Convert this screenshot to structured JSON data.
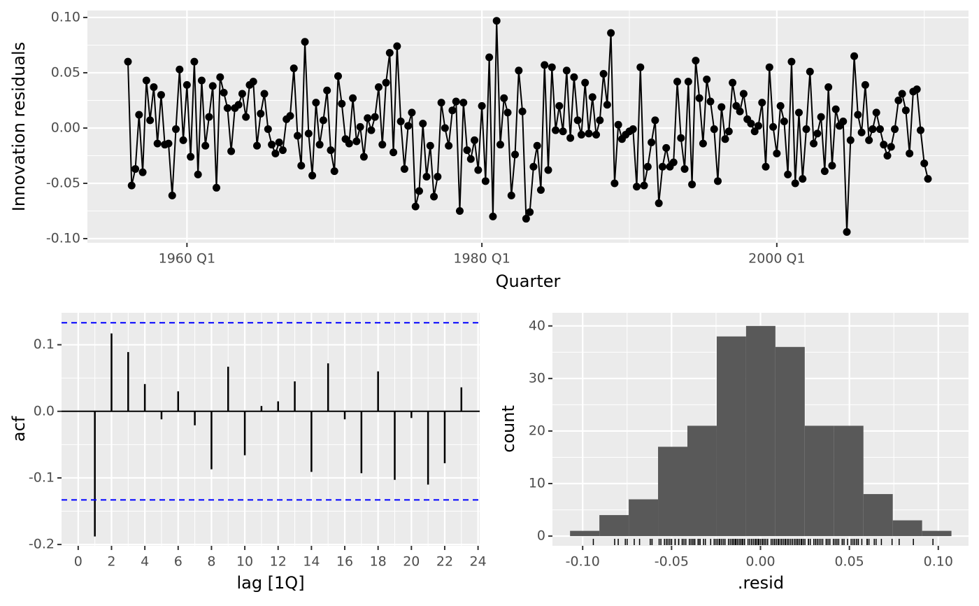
{
  "chart_data": [
    {
      "type": "line",
      "ylabel": "Innovation residuals",
      "xlabel": "Quarter",
      "color": "#000000",
      "grid": true,
      "x": [
        "1956 Q1",
        "1956 Q2",
        "1956 Q3",
        "1956 Q4",
        "1957 Q1",
        "1957 Q2",
        "1957 Q3",
        "1957 Q4",
        "1958 Q1",
        "1958 Q2",
        "1958 Q3",
        "1958 Q4",
        "1959 Q1",
        "1959 Q2",
        "1959 Q3",
        "1959 Q4",
        "1960 Q1",
        "1960 Q2",
        "1960 Q3",
        "1960 Q4",
        "1961 Q1",
        "1961 Q2",
        "1961 Q3",
        "1961 Q4",
        "1962 Q1",
        "1962 Q2",
        "1962 Q3",
        "1962 Q4",
        "1963 Q1",
        "1963 Q2",
        "1963 Q3",
        "1963 Q4",
        "1964 Q1",
        "1964 Q2",
        "1964 Q3",
        "1964 Q4",
        "1965 Q1",
        "1965 Q2",
        "1965 Q3",
        "1965 Q4",
        "1966 Q1",
        "1966 Q2",
        "1966 Q3",
        "1966 Q4",
        "1967 Q1",
        "1967 Q2",
        "1967 Q3",
        "1967 Q4",
        "1968 Q1",
        "1968 Q2",
        "1968 Q3",
        "1968 Q4",
        "1969 Q1",
        "1969 Q2",
        "1969 Q3",
        "1969 Q4",
        "1970 Q1",
        "1970 Q2",
        "1970 Q3",
        "1970 Q4",
        "1971 Q1",
        "1971 Q2",
        "1971 Q3",
        "1971 Q4",
        "1972 Q1",
        "1972 Q2",
        "1972 Q3",
        "1972 Q4",
        "1973 Q1",
        "1973 Q2",
        "1973 Q3",
        "1973 Q4",
        "1974 Q1",
        "1974 Q2",
        "1974 Q3",
        "1974 Q4",
        "1975 Q1",
        "1975 Q2",
        "1975 Q3",
        "1975 Q4",
        "1976 Q1",
        "1976 Q2",
        "1976 Q3",
        "1976 Q4",
        "1977 Q1",
        "1977 Q2",
        "1977 Q3",
        "1977 Q4",
        "1978 Q1",
        "1978 Q2",
        "1978 Q3",
        "1978 Q4",
        "1979 Q1",
        "1979 Q2",
        "1979 Q3",
        "1979 Q4",
        "1980 Q1",
        "1980 Q2",
        "1980 Q3",
        "1980 Q4",
        "1981 Q1",
        "1981 Q2",
        "1981 Q3",
        "1981 Q4",
        "1982 Q1",
        "1982 Q2",
        "1982 Q3",
        "1982 Q4",
        "1983 Q1",
        "1983 Q2",
        "1983 Q3",
        "1983 Q4",
        "1984 Q1",
        "1984 Q2",
        "1984 Q3",
        "1984 Q4",
        "1985 Q1",
        "1985 Q2",
        "1985 Q3",
        "1985 Q4",
        "1986 Q1",
        "1986 Q2",
        "1986 Q3",
        "1986 Q4",
        "1987 Q1",
        "1987 Q2",
        "1987 Q3",
        "1987 Q4",
        "1988 Q1",
        "1988 Q2",
        "1988 Q3",
        "1988 Q4",
        "1989 Q1",
        "1989 Q2",
        "1989 Q3",
        "1989 Q4",
        "1990 Q1",
        "1990 Q2",
        "1990 Q3",
        "1990 Q4",
        "1991 Q1",
        "1991 Q2",
        "1991 Q3",
        "1991 Q4",
        "1992 Q1",
        "1992 Q2",
        "1992 Q3",
        "1992 Q4",
        "1993 Q1",
        "1993 Q2",
        "1993 Q3",
        "1993 Q4",
        "1994 Q1",
        "1994 Q2",
        "1994 Q3",
        "1994 Q4",
        "1995 Q1",
        "1995 Q2",
        "1995 Q3",
        "1995 Q4",
        "1996 Q1",
        "1996 Q2",
        "1996 Q3",
        "1996 Q4",
        "1997 Q1",
        "1997 Q2",
        "1997 Q3",
        "1997 Q4",
        "1998 Q1",
        "1998 Q2",
        "1998 Q3",
        "1998 Q4",
        "1999 Q1",
        "1999 Q2",
        "1999 Q3",
        "1999 Q4",
        "2000 Q1",
        "2000 Q2",
        "2000 Q3",
        "2000 Q4",
        "2001 Q1",
        "2001 Q2",
        "2001 Q3",
        "2001 Q4",
        "2002 Q1",
        "2002 Q2",
        "2002 Q3",
        "2002 Q4",
        "2003 Q1",
        "2003 Q2",
        "2003 Q3",
        "2003 Q4",
        "2004 Q1",
        "2004 Q2",
        "2004 Q3",
        "2004 Q4",
        "2005 Q1",
        "2005 Q2",
        "2005 Q3",
        "2005 Q4",
        "2006 Q1",
        "2006 Q2",
        "2006 Q3",
        "2006 Q4",
        "2007 Q1",
        "2007 Q2",
        "2007 Q3",
        "2007 Q4",
        "2008 Q1",
        "2008 Q2",
        "2008 Q3",
        "2008 Q4",
        "2009 Q1",
        "2009 Q2",
        "2009 Q3",
        "2009 Q4",
        "2010 Q1",
        "2010 Q2"
      ],
      "values": [
        0.06,
        -0.052,
        -0.037,
        0.012,
        -0.04,
        0.043,
        0.007,
        0.037,
        -0.014,
        0.03,
        -0.015,
        -0.014,
        -0.061,
        -0.001,
        0.053,
        -0.011,
        0.039,
        -0.026,
        0.06,
        -0.042,
        0.043,
        -0.016,
        0.01,
        0.038,
        -0.054,
        0.046,
        0.032,
        0.018,
        -0.021,
        0.018,
        0.021,
        0.031,
        0.01,
        0.039,
        0.042,
        -0.016,
        0.013,
        0.031,
        -0.001,
        -0.015,
        -0.023,
        -0.013,
        -0.02,
        0.008,
        0.011,
        0.054,
        -0.007,
        -0.034,
        0.078,
        -0.005,
        -0.043,
        0.023,
        -0.015,
        0.007,
        0.034,
        -0.02,
        -0.039,
        0.047,
        0.022,
        -0.01,
        -0.014,
        0.027,
        -0.012,
        0.001,
        -0.026,
        0.009,
        -0.002,
        0.01,
        0.037,
        -0.015,
        0.041,
        0.068,
        -0.022,
        0.074,
        0.006,
        -0.037,
        0.002,
        0.014,
        -0.071,
        -0.057,
        0.004,
        -0.044,
        -0.016,
        -0.062,
        -0.044,
        0.023,
        0.0,
        -0.016,
        0.016,
        0.024,
        -0.075,
        0.023,
        -0.02,
        -0.028,
        -0.011,
        -0.038,
        0.02,
        -0.048,
        0.064,
        -0.08,
        0.097,
        -0.015,
        0.027,
        0.014,
        -0.061,
        -0.024,
        0.052,
        0.015,
        -0.082,
        -0.076,
        -0.035,
        -0.016,
        -0.056,
        0.057,
        -0.038,
        0.055,
        -0.002,
        0.02,
        -0.003,
        0.052,
        -0.009,
        0.046,
        0.007,
        -0.006,
        0.041,
        -0.005,
        0.028,
        -0.006,
        0.007,
        0.049,
        0.021,
        0.086,
        -0.05,
        0.003,
        -0.01,
        -0.006,
        -0.003,
        -0.001,
        -0.053,
        0.055,
        -0.052,
        -0.035,
        -0.013,
        0.007,
        -0.068,
        -0.035,
        -0.018,
        -0.035,
        -0.031,
        0.042,
        -0.009,
        -0.037,
        0.042,
        -0.051,
        0.061,
        0.027,
        -0.014,
        0.044,
        0.024,
        -0.001,
        -0.048,
        0.019,
        -0.01,
        -0.003,
        0.041,
        0.02,
        0.015,
        0.031,
        0.008,
        0.004,
        -0.003,
        0.002,
        0.023,
        -0.035,
        0.055,
        0.001,
        -0.023,
        0.02,
        0.006,
        -0.042,
        0.06,
        -0.05,
        0.014,
        -0.046,
        -0.001,
        0.051,
        -0.014,
        -0.005,
        0.01,
        -0.039,
        0.037,
        -0.034,
        0.017,
        0.002,
        0.006,
        -0.094,
        -0.011,
        0.065,
        0.012,
        -0.004,
        0.039,
        -0.011,
        -0.001,
        0.014,
        -0.001,
        -0.015,
        -0.025,
        -0.017,
        -0.001,
        0.025,
        0.031,
        0.016,
        -0.023,
        0.033,
        0.035,
        -0.002,
        -0.032,
        -0.046
      ],
      "ylim": [
        -0.1038,
        0.1063
      ],
      "yticks": [
        {
          "value": -0.1,
          "label": "-0.10"
        },
        -0.05,
        {
          "value": 0,
          "label": "0.00"
        },
        0.05,
        {
          "value": 0.1,
          "label": "0.10"
        }
      ],
      "xlim": [
        "1953 Q2",
        "2013 Q1"
      ],
      "xticks": [
        "1960 Q1",
        "1980 Q1",
        "2000 Q1"
      ]
    },
    {
      "type": "acf",
      "xlabel": "lag [1Q]",
      "ylabel": "acf",
      "color": "#000000",
      "grid": true,
      "x": [
        1,
        2,
        3,
        4,
        5,
        6,
        7,
        8,
        9,
        10,
        11,
        12,
        13,
        14,
        15,
        16,
        17,
        18,
        19,
        20,
        21,
        22,
        23
      ],
      "values": [
        -0.188,
        0.117,
        0.089,
        0.041,
        -0.012,
        0.03,
        -0.021,
        -0.087,
        0.067,
        -0.066,
        0.008,
        0.015,
        0.045,
        -0.091,
        0.072,
        -0.012,
        -0.093,
        0.06,
        -0.103,
        -0.01,
        -0.11,
        -0.078,
        0.036
      ],
      "ci": [
        -0.133,
        0.133
      ],
      "ci_color": "#0000ff",
      "ylim": [
        -0.202,
        0.148
      ],
      "yticks": [
        -0.2,
        -0.1,
        {
          "value": 0,
          "label": "0.0"
        },
        0.1
      ],
      "xlim": [
        -1,
        24.1
      ],
      "xticks": [
        0,
        2,
        4,
        6,
        8,
        10,
        12,
        14,
        16,
        18,
        20,
        22,
        24
      ]
    },
    {
      "type": "histogram",
      "xlabel": ".resid",
      "ylabel": "count",
      "color": "#595959",
      "grid": true,
      "rug": true,
      "bins": [
        -0.1071,
        -0.0906,
        -0.0741,
        -0.0576,
        -0.0411,
        -0.0246,
        -0.0081,
        0.0084,
        0.0249,
        0.0414,
        0.0579,
        0.0744,
        0.0909,
        0.1074
      ],
      "values": [
        1,
        4,
        7,
        17,
        21,
        38,
        40,
        36,
        21,
        21,
        8,
        3,
        1
      ],
      "ylim": [
        -1.85,
        42.5
      ],
      "yticks": [
        0,
        10,
        20,
        30,
        40
      ],
      "xlim": [
        -0.117,
        0.117
      ],
      "xticks": [
        {
          "value": -0.1,
          "label": "-0.10"
        },
        -0.05,
        {
          "value": 0,
          "label": "0.00"
        },
        0.05,
        {
          "value": 0.1,
          "label": "0.10"
        }
      ]
    }
  ]
}
